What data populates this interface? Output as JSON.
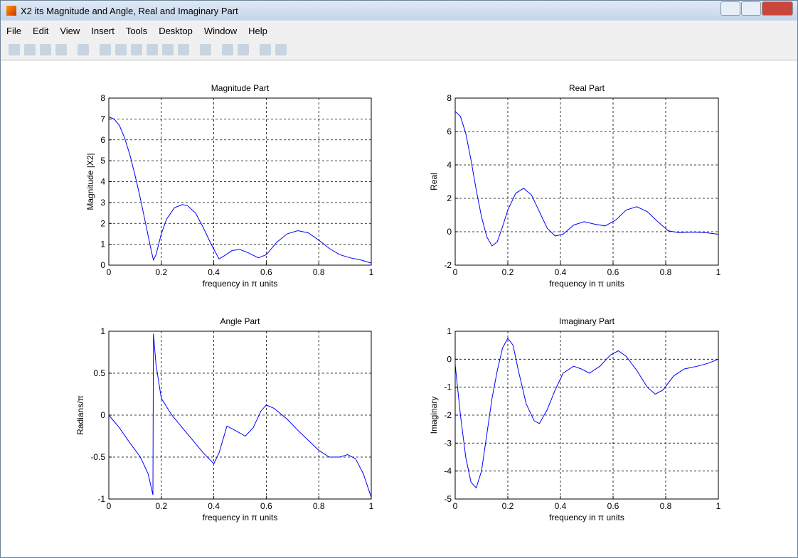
{
  "window": {
    "title": "X2 its Magnitude and Angle, Real and Imaginary Part",
    "menu": [
      "File",
      "Edit",
      "View",
      "Insert",
      "Tools",
      "Desktop",
      "Window",
      "Help"
    ]
  },
  "chart_data": [
    {
      "type": "line",
      "title": "Magnitude Part",
      "x_label": "frequency in π units",
      "y_label": "Magnitude  |X2|",
      "x": [
        0,
        0.02,
        0.04,
        0.06,
        0.08,
        0.1,
        0.12,
        0.14,
        0.16,
        0.17,
        0.18,
        0.2,
        0.22,
        0.25,
        0.28,
        0.3,
        0.33,
        0.36,
        0.39,
        0.42,
        0.44,
        0.47,
        0.5,
        0.53,
        0.57,
        0.6,
        0.64,
        0.68,
        0.72,
        0.76,
        0.8,
        0.84,
        0.88,
        0.92,
        0.96,
        1
      ],
      "values": [
        7.1,
        7.0,
        6.7,
        6.1,
        5.3,
        4.3,
        3.2,
        2.0,
        0.8,
        0.25,
        0.5,
        1.5,
        2.2,
        2.75,
        2.9,
        2.85,
        2.5,
        1.8,
        1.0,
        0.3,
        0.45,
        0.7,
        0.75,
        0.6,
        0.35,
        0.5,
        1.1,
        1.5,
        1.65,
        1.55,
        1.2,
        0.8,
        0.5,
        0.35,
        0.25,
        0.1
      ],
      "color": "#0000ff",
      "xlim": [
        0,
        1
      ],
      "ylim": [
        0,
        8
      ],
      "xticks": [
        0,
        0.2,
        0.4,
        0.6,
        0.8,
        1
      ],
      "yticks": [
        0,
        1,
        2,
        3,
        4,
        5,
        6,
        7,
        8
      ],
      "grid": true
    },
    {
      "type": "line",
      "title": "Real Part",
      "x_label": "frequency in π units",
      "y_label": "Real",
      "x": [
        0,
        0.02,
        0.04,
        0.06,
        0.08,
        0.1,
        0.12,
        0.14,
        0.16,
        0.18,
        0.2,
        0.23,
        0.26,
        0.29,
        0.32,
        0.35,
        0.38,
        0.41,
        0.45,
        0.49,
        0.53,
        0.57,
        0.61,
        0.65,
        0.69,
        0.73,
        0.77,
        0.81,
        0.85,
        0.9,
        0.95,
        1
      ],
      "values": [
        7.2,
        6.9,
        5.9,
        4.3,
        2.5,
        0.9,
        -0.3,
        -0.85,
        -0.6,
        0.3,
        1.3,
        2.3,
        2.6,
        2.2,
        1.2,
        0.2,
        -0.25,
        -0.15,
        0.4,
        0.6,
        0.45,
        0.35,
        0.7,
        1.3,
        1.5,
        1.2,
        0.6,
        0.05,
        -0.05,
        -0.02,
        -0.05,
        -0.15
      ],
      "color": "#0000ff",
      "xlim": [
        0,
        1
      ],
      "ylim": [
        -2,
        8
      ],
      "xticks": [
        0,
        0.2,
        0.4,
        0.6,
        0.8,
        1
      ],
      "yticks": [
        -2,
        0,
        2,
        4,
        6,
        8
      ],
      "grid": true
    },
    {
      "type": "line",
      "title": "Angle Part",
      "x_label": "frequency in π units",
      "y_label": "Radians/π",
      "x": [
        0,
        0.04,
        0.08,
        0.12,
        0.15,
        0.168,
        0.17,
        0.18,
        0.2,
        0.24,
        0.28,
        0.32,
        0.36,
        0.4,
        0.42,
        0.45,
        0.48,
        0.52,
        0.55,
        0.58,
        0.6,
        0.63,
        0.68,
        0.72,
        0.76,
        0.8,
        0.84,
        0.88,
        0.91,
        0.94,
        0.97,
        1
      ],
      "values": [
        0,
        -0.15,
        -0.33,
        -0.5,
        -0.7,
        -0.95,
        0.97,
        0.6,
        0.2,
        0.0,
        -0.15,
        -0.3,
        -0.45,
        -0.58,
        -0.45,
        -0.13,
        -0.18,
        -0.25,
        -0.15,
        0.05,
        0.12,
        0.08,
        -0.05,
        -0.18,
        -0.3,
        -0.42,
        -0.5,
        -0.5,
        -0.47,
        -0.52,
        -0.7,
        -0.98
      ],
      "color": "#0000ff",
      "xlim": [
        0,
        1
      ],
      "ylim": [
        -1,
        1
      ],
      "xticks": [
        0,
        0.2,
        0.4,
        0.6,
        0.8,
        1
      ],
      "yticks": [
        -1,
        -0.5,
        0,
        0.5,
        1
      ],
      "grid": true
    },
    {
      "type": "line",
      "title": "Imaginary Part",
      "x_label": "frequency in π units",
      "y_label": "Imaginary",
      "x": [
        0,
        0.02,
        0.04,
        0.06,
        0.08,
        0.1,
        0.12,
        0.14,
        0.16,
        0.18,
        0.2,
        0.22,
        0.24,
        0.27,
        0.3,
        0.32,
        0.35,
        0.38,
        0.41,
        0.45,
        0.48,
        0.51,
        0.55,
        0.59,
        0.62,
        0.65,
        0.69,
        0.73,
        0.76,
        0.79,
        0.83,
        0.87,
        0.92,
        0.96,
        1
      ],
      "values": [
        -0.2,
        -2.0,
        -3.5,
        -4.4,
        -4.6,
        -4.0,
        -2.7,
        -1.4,
        -0.4,
        0.4,
        0.75,
        0.5,
        -0.4,
        -1.6,
        -2.2,
        -2.3,
        -1.8,
        -1.1,
        -0.5,
        -0.25,
        -0.35,
        -0.5,
        -0.25,
        0.15,
        0.3,
        0.1,
        -0.4,
        -1.0,
        -1.25,
        -1.1,
        -0.6,
        -0.35,
        -0.25,
        -0.15,
        0
      ],
      "color": "#0000ff",
      "xlim": [
        0,
        1
      ],
      "ylim": [
        -5,
        1
      ],
      "xticks": [
        0,
        0.2,
        0.4,
        0.6,
        0.8,
        1
      ],
      "yticks": [
        -5,
        -4,
        -3,
        -2,
        -1,
        0,
        1
      ],
      "grid": true
    }
  ]
}
